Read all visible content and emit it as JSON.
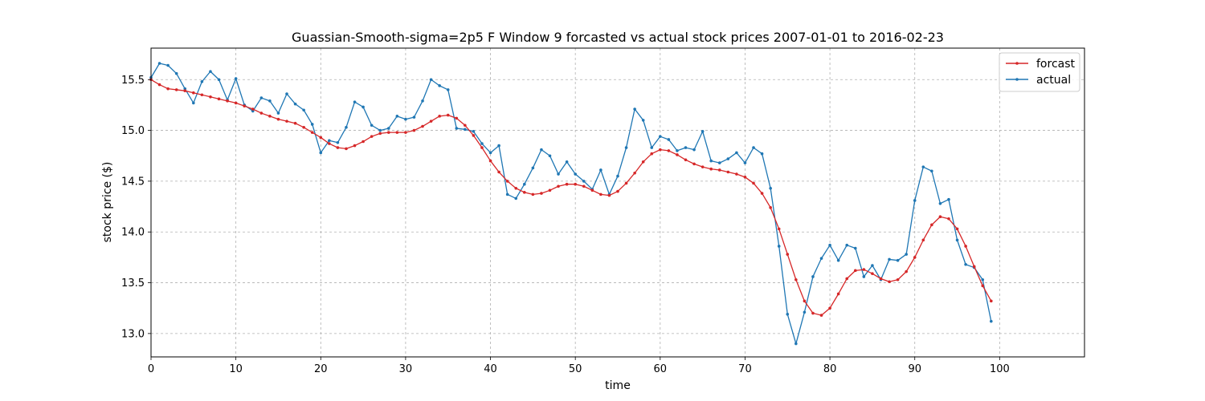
{
  "chart_data": {
    "type": "line",
    "title": "Guassian-Smooth-sigma=2p5 F Window 9 forcasted vs actual stock prices 2007-01-01 to 2016-02-23",
    "xlabel": "time",
    "ylabel": "stock price ($)",
    "xlim": [
      0,
      110
    ],
    "ylim": [
      12.77,
      15.81
    ],
    "x_ticks": [
      0,
      10,
      20,
      30,
      40,
      50,
      60,
      70,
      80,
      90,
      100
    ],
    "y_ticks": [
      13.0,
      13.5,
      14.0,
      14.5,
      15.0,
      15.5
    ],
    "x_tick_labels": [
      "0",
      "10",
      "20",
      "30",
      "40",
      "50",
      "60",
      "70",
      "80",
      "90",
      "100"
    ],
    "y_tick_labels": [
      "13.0",
      "13.5",
      "14.0",
      "14.5",
      "15.0",
      "15.5"
    ],
    "grid": true,
    "legend_position": "top-right",
    "series": [
      {
        "name": "forcast",
        "color": "#d62728",
        "values": [
          15.5,
          15.45,
          15.41,
          15.4,
          15.39,
          15.37,
          15.35,
          15.33,
          15.31,
          15.29,
          15.27,
          15.24,
          15.21,
          15.17,
          15.14,
          15.11,
          15.09,
          15.07,
          15.03,
          14.98,
          14.93,
          14.87,
          14.83,
          14.82,
          14.85,
          14.89,
          14.94,
          14.97,
          14.98,
          14.98,
          14.98,
          15.0,
          15.04,
          15.09,
          15.14,
          15.15,
          15.12,
          15.05,
          14.95,
          14.83,
          14.7,
          14.59,
          14.5,
          14.43,
          14.39,
          14.37,
          14.38,
          14.41,
          14.45,
          14.47,
          14.47,
          14.45,
          14.41,
          14.37,
          14.36,
          14.4,
          14.48,
          14.58,
          14.69,
          14.77,
          14.81,
          14.8,
          14.76,
          14.71,
          14.67,
          14.64,
          14.62,
          14.61,
          14.59,
          14.57,
          14.54,
          14.48,
          14.38,
          14.24,
          14.03,
          13.78,
          13.53,
          13.32,
          13.2,
          13.18,
          13.25,
          13.39,
          13.54,
          13.62,
          13.63,
          13.59,
          13.54,
          13.51,
          13.53,
          13.61,
          13.75,
          13.92,
          14.07,
          14.15,
          14.13,
          14.03,
          13.86,
          13.66,
          13.47,
          13.32
        ]
      },
      {
        "name": "actual",
        "color": "#1f77b4",
        "values": [
          15.52,
          15.66,
          15.64,
          15.56,
          15.41,
          15.27,
          15.48,
          15.58,
          15.5,
          15.3,
          15.51,
          15.25,
          15.19,
          15.32,
          15.29,
          15.17,
          15.36,
          15.26,
          15.2,
          15.06,
          14.78,
          14.9,
          14.88,
          15.03,
          15.28,
          15.23,
          15.05,
          15.0,
          15.02,
          15.14,
          15.11,
          15.13,
          15.29,
          15.5,
          15.44,
          15.4,
          15.02,
          15.01,
          14.99,
          14.87,
          14.78,
          14.85,
          14.37,
          14.33,
          14.47,
          14.63,
          14.81,
          14.75,
          14.57,
          14.69,
          14.57,
          14.5,
          14.42,
          14.61,
          14.37,
          14.55,
          14.83,
          15.21,
          15.1,
          14.83,
          14.94,
          14.91,
          14.8,
          14.83,
          14.81,
          14.99,
          14.7,
          14.68,
          14.72,
          14.78,
          14.68,
          14.83,
          14.77,
          14.43,
          13.86,
          13.19,
          12.9,
          13.21,
          13.56,
          13.74,
          13.87,
          13.72,
          13.87,
          13.84,
          13.56,
          13.67,
          13.53,
          13.73,
          13.72,
          13.78,
          14.31,
          14.64,
          14.6,
          14.28,
          14.32,
          13.92,
          13.68,
          13.65,
          13.53,
          13.12
        ]
      }
    ]
  }
}
